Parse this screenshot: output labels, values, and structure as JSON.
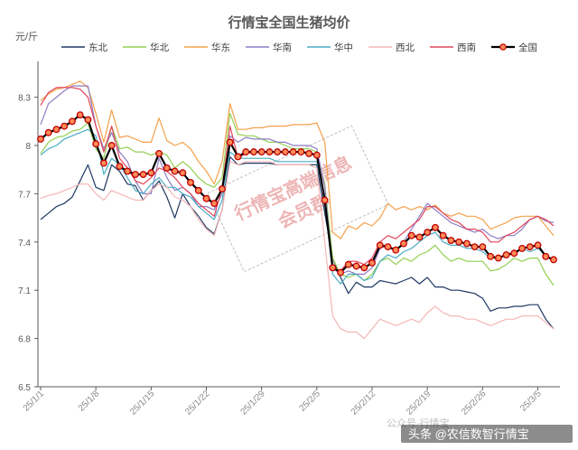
{
  "chart_data": {
    "type": "line",
    "title": "行情宝全国生猪均价",
    "unit_label": "元/斤",
    "ylim": [
      6.5,
      8.5
    ],
    "yticks": [
      "6.5",
      "6.8",
      "7.1",
      "7.4",
      "7.7",
      "8",
      "8.3"
    ],
    "ytick_values": [
      6.5,
      6.8,
      7.1,
      7.4,
      7.7,
      8.0,
      8.3
    ],
    "x": [
      "25/1/1",
      "25/1/2",
      "25/1/3",
      "25/1/4",
      "25/1/5",
      "25/1/6",
      "25/1/7",
      "25/1/8",
      "25/1/9",
      "25/1/10",
      "25/1/11",
      "25/1/12",
      "25/1/13",
      "25/1/14",
      "25/1/15",
      "25/1/16",
      "25/1/17",
      "25/1/18",
      "25/1/19",
      "25/1/20",
      "25/1/21",
      "25/1/22",
      "25/1/23",
      "25/1/24",
      "25/1/25",
      "25/1/26",
      "25/1/27",
      "25/1/28",
      "25/1/29",
      "25/1/30",
      "25/1/31",
      "25/2/1",
      "25/2/2",
      "25/2/3",
      "25/2/4",
      "25/2/5",
      "25/2/6",
      "25/2/7",
      "25/2/8",
      "25/2/9",
      "25/2/10",
      "25/2/11",
      "25/2/12",
      "25/2/13",
      "25/2/14",
      "25/2/15",
      "25/2/16",
      "25/2/17",
      "25/2/18",
      "25/2/19",
      "25/2/20",
      "25/2/21",
      "25/2/22",
      "25/2/23",
      "25/2/24",
      "25/2/25",
      "25/2/26",
      "25/2/27",
      "25/2/28",
      "25/3/1",
      "25/3/2",
      "25/3/3",
      "25/3/4",
      "25/3/5",
      "25/3/6",
      "25/3/7"
    ],
    "xticks": [
      "25/1/1",
      "25/1/8",
      "25/1/15",
      "25/1/22",
      "25/1/29",
      "25/2/5",
      "25/2/12",
      "25/2/19",
      "25/2/26",
      "25/3/5"
    ],
    "grid": false,
    "legend_position": "top",
    "series": [
      {
        "name": "东北",
        "color": "#1f3864",
        "marker": false,
        "width": 1.2,
        "values": [
          7.54,
          7.58,
          7.62,
          7.64,
          7.68,
          7.78,
          7.88,
          7.74,
          7.72,
          7.88,
          7.84,
          7.76,
          7.75,
          7.66,
          7.72,
          7.78,
          7.68,
          7.55,
          7.7,
          7.62,
          7.56,
          7.49,
          7.45,
          7.6,
          7.93,
          7.88,
          7.89,
          7.89,
          7.89,
          7.89,
          7.88,
          7.88,
          7.88,
          7.88,
          7.88,
          7.88,
          7.58,
          7.3,
          7.18,
          7.08,
          7.15,
          7.12,
          7.12,
          7.16,
          7.15,
          7.14,
          7.16,
          7.18,
          7.14,
          7.18,
          7.12,
          7.12,
          7.1,
          7.1,
          7.09,
          7.08,
          7.05,
          6.97,
          6.99,
          6.99,
          7.0,
          7.0,
          7.01,
          7.01,
          6.92,
          6.86
        ]
      },
      {
        "name": "华北",
        "color": "#92d050",
        "marker": false,
        "width": 1.2,
        "values": [
          7.95,
          8.02,
          8.05,
          8.06,
          8.09,
          8.1,
          8.14,
          7.98,
          7.92,
          8.12,
          7.98,
          7.99,
          7.96,
          7.96,
          7.94,
          7.96,
          7.94,
          7.86,
          7.9,
          7.86,
          7.8,
          7.76,
          7.74,
          7.8,
          8.2,
          8.07,
          8.06,
          8.06,
          8.04,
          8.02,
          8.02,
          8.0,
          7.98,
          7.98,
          7.98,
          7.96,
          7.76,
          7.3,
          7.2,
          7.18,
          7.2,
          7.16,
          7.2,
          7.28,
          7.3,
          7.26,
          7.3,
          7.28,
          7.32,
          7.34,
          7.38,
          7.32,
          7.28,
          7.3,
          7.28,
          7.28,
          7.28,
          7.22,
          7.23,
          7.26,
          7.3,
          7.28,
          7.3,
          7.3,
          7.2,
          7.13
        ]
      },
      {
        "name": "华东",
        "color": "#f4a04a",
        "marker": false,
        "width": 1.2,
        "values": [
          8.28,
          8.32,
          8.35,
          8.36,
          8.38,
          8.4,
          8.36,
          8.2,
          8.02,
          8.22,
          8.05,
          8.06,
          8.04,
          8.02,
          8.02,
          8.17,
          8.03,
          8.0,
          8.02,
          7.98,
          7.9,
          7.84,
          7.76,
          7.9,
          8.26,
          8.1,
          8.1,
          8.11,
          8.11,
          8.12,
          8.12,
          8.12,
          8.13,
          8.13,
          8.13,
          8.14,
          8.02,
          7.46,
          7.42,
          7.5,
          7.48,
          7.52,
          7.5,
          7.55,
          7.64,
          7.6,
          7.62,
          7.6,
          7.62,
          7.6,
          7.63,
          7.58,
          7.56,
          7.58,
          7.56,
          7.56,
          7.54,
          7.48,
          7.5,
          7.52,
          7.55,
          7.56,
          7.56,
          7.56,
          7.5,
          7.44
        ]
      },
      {
        "name": "华南",
        "color": "#8e7cc3",
        "marker": false,
        "width": 1.2,
        "values": [
          8.13,
          8.26,
          8.3,
          8.34,
          8.37,
          8.37,
          8.37,
          8.12,
          7.98,
          8.08,
          7.96,
          7.9,
          7.78,
          7.7,
          7.7,
          7.92,
          7.8,
          7.72,
          7.74,
          7.7,
          7.62,
          7.62,
          7.6,
          7.7,
          8.06,
          8.02,
          8.05,
          8.04,
          8.04,
          8.04,
          8.02,
          8.02,
          8.0,
          8.0,
          8.0,
          7.98,
          7.74,
          7.24,
          7.2,
          7.22,
          7.2,
          7.2,
          7.24,
          7.36,
          7.38,
          7.34,
          7.4,
          7.48,
          7.56,
          7.64,
          7.6,
          7.56,
          7.52,
          7.5,
          7.48,
          7.46,
          7.48,
          7.44,
          7.42,
          7.44,
          7.44,
          7.48,
          7.54,
          7.56,
          7.53,
          7.52
        ]
      },
      {
        "name": "华中",
        "color": "#4bacc6",
        "marker": false,
        "width": 1.2,
        "values": [
          7.94,
          7.98,
          8.0,
          8.04,
          8.06,
          8.08,
          8.1,
          8.06,
          7.82,
          7.92,
          7.88,
          7.8,
          7.72,
          7.7,
          7.76,
          7.8,
          7.74,
          7.74,
          7.7,
          7.68,
          7.62,
          7.58,
          7.54,
          7.66,
          7.96,
          7.92,
          7.92,
          7.92,
          7.92,
          7.92,
          7.9,
          7.9,
          7.9,
          7.9,
          7.9,
          7.9,
          7.66,
          7.2,
          7.14,
          7.2,
          7.2,
          7.16,
          7.18,
          7.28,
          7.32,
          7.3,
          7.34,
          7.36,
          7.4,
          7.44,
          7.46,
          7.4,
          7.38,
          7.38,
          7.36,
          7.36,
          7.34,
          7.3,
          7.3,
          7.32,
          7.34,
          7.36,
          7.34,
          7.36,
          7.32,
          7.28
        ]
      },
      {
        "name": "西北",
        "color": "#f4b6b6",
        "marker": false,
        "width": 1.2,
        "values": [
          7.67,
          7.69,
          7.7,
          7.72,
          7.74,
          7.76,
          7.76,
          7.7,
          7.66,
          7.72,
          7.7,
          7.68,
          7.66,
          7.66,
          7.72,
          7.76,
          7.74,
          7.68,
          7.66,
          7.62,
          7.54,
          7.48,
          7.44,
          7.6,
          7.9,
          7.88,
          7.9,
          7.9,
          7.9,
          7.9,
          7.88,
          7.88,
          7.88,
          7.88,
          7.88,
          7.86,
          7.4,
          6.94,
          6.86,
          6.84,
          6.84,
          6.8,
          6.86,
          6.92,
          6.9,
          6.88,
          6.9,
          6.92,
          6.9,
          6.96,
          7.0,
          6.96,
          6.94,
          6.94,
          6.92,
          6.92,
          6.9,
          6.88,
          6.9,
          6.92,
          6.92,
          6.94,
          6.94,
          6.94,
          6.9,
          6.86
        ]
      },
      {
        "name": "西南",
        "color": "#e0465a",
        "marker": false,
        "width": 1.2,
        "values": [
          8.25,
          8.33,
          8.36,
          8.36,
          8.36,
          8.35,
          8.3,
          8.12,
          7.96,
          8.12,
          7.92,
          7.86,
          7.78,
          7.76,
          7.8,
          7.86,
          7.84,
          7.8,
          7.74,
          7.7,
          7.64,
          7.6,
          7.56,
          7.74,
          8.12,
          7.92,
          7.95,
          7.96,
          7.96,
          7.96,
          7.96,
          7.96,
          7.96,
          7.96,
          7.96,
          7.94,
          7.66,
          7.24,
          7.22,
          7.28,
          7.28,
          7.26,
          7.3,
          7.4,
          7.44,
          7.42,
          7.46,
          7.5,
          7.54,
          7.62,
          7.62,
          7.58,
          7.54,
          7.52,
          7.48,
          7.48,
          7.46,
          7.4,
          7.4,
          7.44,
          7.46,
          7.5,
          7.54,
          7.56,
          7.54,
          7.5
        ]
      },
      {
        "name": "全国",
        "color": "#000000",
        "marker": true,
        "width": 2.2,
        "values": [
          8.04,
          8.08,
          8.1,
          8.12,
          8.15,
          8.19,
          8.16,
          8.01,
          7.89,
          8.0,
          7.87,
          7.84,
          7.82,
          7.82,
          7.83,
          7.95,
          7.86,
          7.84,
          7.83,
          7.77,
          7.72,
          7.67,
          7.64,
          7.73,
          8.02,
          7.93,
          7.96,
          7.96,
          7.96,
          7.96,
          7.96,
          7.96,
          7.96,
          7.96,
          7.95,
          7.94,
          7.66,
          7.24,
          7.21,
          7.26,
          7.25,
          7.24,
          7.27,
          7.38,
          7.37,
          7.35,
          7.39,
          7.44,
          7.43,
          7.46,
          7.49,
          7.44,
          7.41,
          7.4,
          7.39,
          7.37,
          7.37,
          7.31,
          7.3,
          7.32,
          7.33,
          7.36,
          7.37,
          7.38,
          7.31,
          7.29
        ]
      }
    ]
  },
  "watermark": {
    "line1": "行情宝高端信息",
    "line2": "会员群"
  },
  "corner_credit": {
    "faint": "公众号·行情宝",
    "text": "头条 @农信数智行情宝"
  }
}
